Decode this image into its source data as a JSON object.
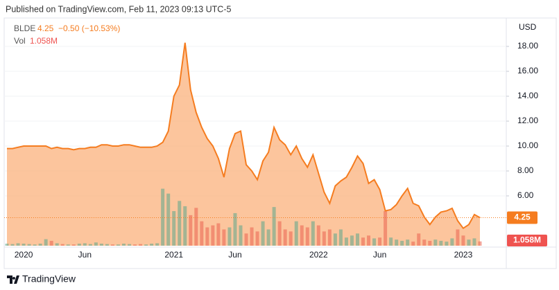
{
  "published": "Published on TradingView.com, Feb 11, 2023 09:13 UTC-5",
  "brand": "TradingView",
  "chart_data": {
    "type": "area",
    "change": "−0.50 (−10.53%)",
    "y_unit": "USD",
    "categories": [
      null,
      null,
      null,
      "2020",
      null,
      null,
      null,
      null,
      null,
      null,
      null,
      null,
      null,
      null,
      "Jun",
      null,
      null,
      null,
      null,
      null,
      null,
      null,
      null,
      null,
      null,
      null,
      null,
      null,
      null,
      null,
      "2021",
      null,
      null,
      null,
      null,
      null,
      null,
      null,
      null,
      null,
      null,
      "Jun",
      null,
      null,
      null,
      null,
      null,
      null,
      null,
      null,
      null,
      null,
      null,
      null,
      null,
      null,
      "2022",
      null,
      null,
      null,
      null,
      null,
      null,
      null,
      null,
      null,
      null,
      "Jun",
      null,
      null,
      null,
      null,
      null,
      null,
      null,
      null,
      null,
      null,
      null,
      null,
      null,
      null,
      "2023",
      null,
      null,
      null
    ],
    "series": [
      {
        "name": "BLDE",
        "color": "#f57c1f",
        "area_color": "#fbb27c",
        "values": [
          9.8,
          9.8,
          9.9,
          10.0,
          10.0,
          10.0,
          10.0,
          10.0,
          9.8,
          9.9,
          9.8,
          9.8,
          9.7,
          9.8,
          9.8,
          9.9,
          9.9,
          10.1,
          10.1,
          10.0,
          10.0,
          10.1,
          10.1,
          10.0,
          9.9,
          9.9,
          9.9,
          10.0,
          10.3,
          11.2,
          14.0,
          14.9,
          18.3,
          14.5,
          12.7,
          11.5,
          10.6,
          10.0,
          9.0,
          7.5,
          9.8,
          11.0,
          11.2,
          8.5,
          8.0,
          7.3,
          8.8,
          9.5,
          11.5,
          10.5,
          10.1,
          9.3,
          10.0,
          9.0,
          8.3,
          9.3,
          7.8,
          6.3,
          5.4,
          6.8,
          7.2,
          7.5,
          8.3,
          9.2,
          8.6,
          7.0,
          7.3,
          6.5,
          4.8,
          4.9,
          5.3,
          6.0,
          6.6,
          5.4,
          5.2,
          4.3,
          3.7,
          4.3,
          4.7,
          4.8,
          5.0,
          4.0,
          3.4,
          3.7,
          4.5,
          4.25
        ]
      },
      {
        "name": "Vol",
        "color": "#ef5350",
        "up_color": "#5aa58a",
        "down_color": "#e9614f",
        "last_value_label": "1.058M",
        "values": [
          500000,
          400000,
          600000,
          500000,
          400000,
          300000,
          500000,
          1600000,
          1200000,
          600000,
          400000,
          300000,
          300000,
          500000,
          600000,
          400000,
          800000,
          500000,
          400000,
          300000,
          300000,
          500000,
          400000,
          300000,
          400000,
          300000,
          500000,
          600000,
          14000000,
          12800000,
          8500000,
          11000000,
          9700000,
          7500000,
          9300000,
          6000000,
          4500000,
          5000000,
          5500000,
          4000000,
          4500000,
          8000000,
          5000000,
          3000000,
          4500000,
          3500000,
          6000000,
          4000000,
          9500000,
          6000000,
          4000000,
          3500000,
          6000000,
          5000000,
          4500000,
          6000000,
          5000000,
          3500000,
          4000000,
          3000000,
          4000000,
          2000000,
          2500000,
          3000000,
          2000000,
          2500000,
          1800000,
          2000000,
          8500000,
          2000000,
          1500000,
          1200000,
          1500000,
          1000000,
          3000000,
          1500000,
          1200000,
          1500000,
          1200000,
          1000000,
          1800000,
          4000000,
          2500000,
          1500000,
          1800000,
          1058000
        ]
      }
    ],
    "ylim": [
      2,
      20.17
    ],
    "yticks": [
      {
        "value": 6,
        "label": "6.00"
      },
      {
        "value": 8,
        "label": "8.00"
      },
      {
        "value": 10,
        "label": "10.00"
      },
      {
        "value": 12,
        "label": "12.00"
      },
      {
        "value": 14,
        "label": "14.00"
      },
      {
        "value": 16,
        "label": "16.00"
      },
      {
        "value": 18,
        "label": "18.00"
      }
    ],
    "vlim": [
      0,
      17000000
    ],
    "grid": true
  }
}
